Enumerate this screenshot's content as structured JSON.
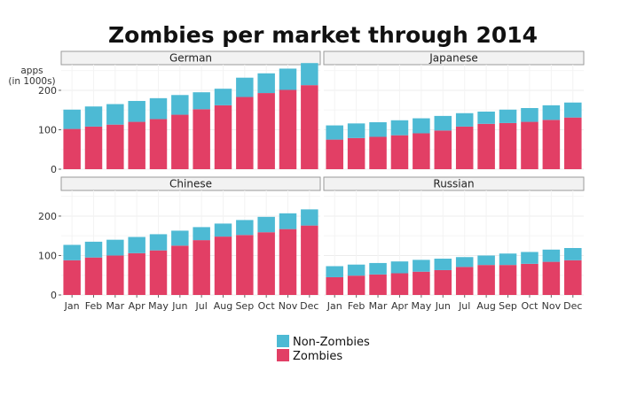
{
  "chart_data": {
    "type": "bar",
    "stacked": true,
    "title": "Zombies per market through 2014",
    "ylabel": [
      "apps",
      "(in 1000s)"
    ],
    "categories": [
      "Jan",
      "Feb",
      "Mar",
      "Apr",
      "May",
      "Jun",
      "Jul",
      "Aug",
      "Sep",
      "Oct",
      "Nov",
      "Dec"
    ],
    "yticks": [
      0,
      100,
      200
    ],
    "ylim": [
      0,
      265
    ],
    "grid": true,
    "legend": {
      "placement": "bottom-center",
      "entries": [
        "Non-Zombies",
        "Zombies"
      ]
    },
    "colors": {
      "Zombies": "#e23f65",
      "Non-Zombies": "#4dbad4"
    },
    "panels": [
      {
        "name": "German",
        "series": [
          {
            "name": "Zombies",
            "values": [
              102,
              108,
              113,
              120,
              127,
              138,
              152,
              162,
              183,
              193,
              201,
              213
            ]
          },
          {
            "name": "Non-Zombies",
            "values": [
              49,
              51,
              52,
              53,
              53,
              50,
              43,
              42,
              49,
              50,
              54,
              56
            ]
          }
        ]
      },
      {
        "name": "Japanese",
        "series": [
          {
            "name": "Zombies",
            "values": [
              75,
              79,
              82,
              86,
              91,
              98,
              108,
              115,
              117,
              120,
              125,
              131
            ]
          },
          {
            "name": "Non-Zombies",
            "values": [
              36,
              37,
              37,
              38,
              38,
              37,
              34,
              31,
              34,
              35,
              37,
              38
            ]
          }
        ]
      },
      {
        "name": "Chinese",
        "series": [
          {
            "name": "Zombies",
            "values": [
              88,
              95,
              100,
              106,
              113,
              125,
              139,
              148,
              152,
              159,
              167,
              176
            ]
          },
          {
            "name": "Non-Zombies",
            "values": [
              39,
              40,
              40,
              41,
              41,
              38,
              33,
              33,
              38,
              39,
              40,
              41
            ]
          }
        ]
      },
      {
        "name": "Russian",
        "series": [
          {
            "name": "Zombies",
            "values": [
              45,
              49,
              52,
              55,
              59,
              63,
              71,
              76,
              76,
              79,
              84,
              88
            ]
          },
          {
            "name": "Non-Zombies",
            "values": [
              28,
              28,
              29,
              30,
              30,
              29,
              25,
              24,
              29,
              30,
              31,
              31
            ]
          }
        ]
      }
    ]
  }
}
